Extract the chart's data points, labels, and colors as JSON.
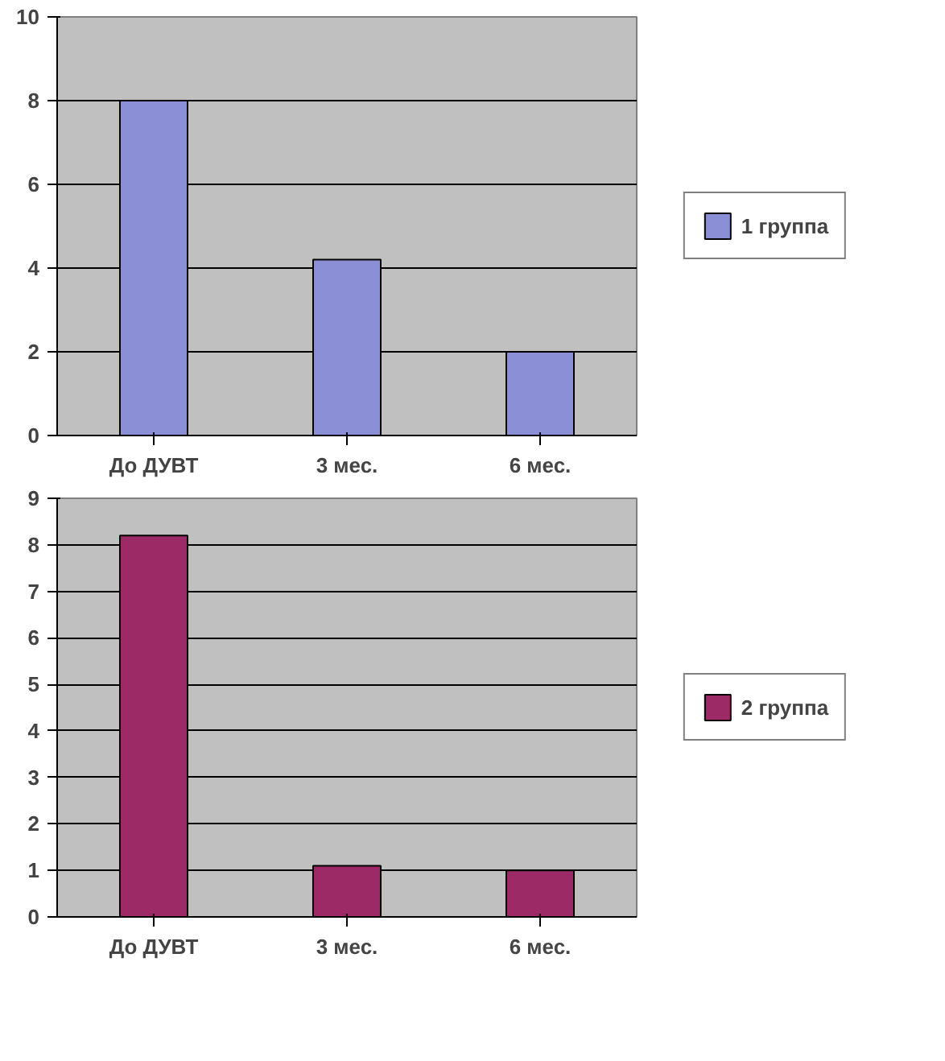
{
  "chart_data": [
    {
      "type": "bar",
      "categories": [
        "До ДУВТ",
        "3 мес.",
        "6 мес."
      ],
      "series": [
        {
          "name": "1 группа",
          "color": "#8a8fd6",
          "values": [
            8,
            4.2,
            2
          ]
        }
      ],
      "ylim": [
        0,
        10
      ],
      "yticks": [
        0,
        2,
        4,
        6,
        8,
        10
      ],
      "grid": "y",
      "legend": "right"
    },
    {
      "type": "bar",
      "categories": [
        "До ДУВТ",
        "3 мес.",
        "6 мес."
      ],
      "series": [
        {
          "name": "2 группа",
          "color": "#9b2a66",
          "values": [
            8.2,
            1.1,
            1.0
          ]
        }
      ],
      "ylim": [
        0,
        9
      ],
      "yticks": [
        0,
        1,
        2,
        3,
        4,
        5,
        6,
        7,
        8,
        9
      ],
      "grid": "y",
      "legend": "right"
    }
  ]
}
